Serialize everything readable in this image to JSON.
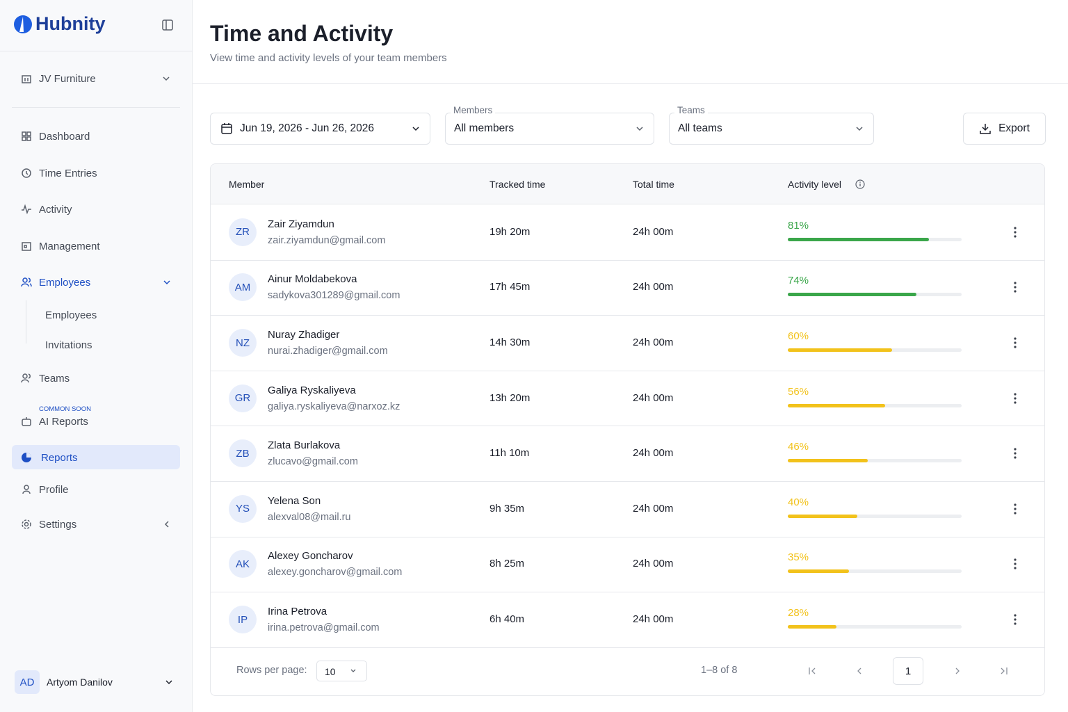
{
  "sidebar": {
    "brand": "Hubnity",
    "workspace": "JV Furniture",
    "nav": {
      "dashboard": "Dashboard",
      "time_entries": "Time Entries",
      "activity": "Activity",
      "management": "Management",
      "employees_group": "Employees",
      "employees_sub": [
        "Employees",
        "Invitations"
      ],
      "teams": "Teams",
      "ai_reports_badge": "COMMON SOON",
      "ai_reports": "AI Reports",
      "reports": "Reports",
      "profile": "Profile",
      "settings": "Settings"
    },
    "user": {
      "initials": "AD",
      "name": "Artyom Danilov"
    }
  },
  "header": {
    "title": "Time and Activity",
    "subtitle": "View time and activity levels of your team members"
  },
  "filters": {
    "date_range": "Jun 19, 2026 - Jun 26, 2026",
    "members_label": "Members",
    "members_value": "All members",
    "teams_label": "Teams",
    "teams_value": "All teams",
    "export": "Export"
  },
  "table": {
    "columns": [
      "Member",
      "Tracked time",
      "Total time",
      "Activity level"
    ],
    "rows": [
      {
        "initials": "ZR",
        "name": "Zair Ziyamdun",
        "email": "zair.ziyamdun@gmail.com",
        "tracked": "19h 20m",
        "total": "24h 00m",
        "activity": 81,
        "activity_label": "81%",
        "color": "#3aa64a"
      },
      {
        "initials": "AM",
        "name": "Ainur Moldabekova",
        "email": "sadykova301289@gmail.com",
        "tracked": "17h 45m",
        "total": "24h 00m",
        "activity": 74,
        "activity_label": "74%",
        "color": "#3aa64a"
      },
      {
        "initials": "NZ",
        "name": "Nuray Zhadiger",
        "email": "nurai.zhadiger@gmail.com",
        "tracked": "14h 30m",
        "total": "24h 00m",
        "activity": 60,
        "activity_label": "60%",
        "color": "#f2c21b"
      },
      {
        "initials": "GR",
        "name": "Galiya Ryskaliyeva",
        "email": "galiya.ryskaliyeva@narxoz.kz",
        "tracked": "13h 20m",
        "total": "24h 00m",
        "activity": 56,
        "activity_label": "56%",
        "color": "#f2c21b"
      },
      {
        "initials": "ZB",
        "name": "Zlata Burlakova",
        "email": "zlucavo@gmail.com",
        "tracked": "11h 10m",
        "total": "24h 00m",
        "activity": 46,
        "activity_label": "46%",
        "color": "#f2c21b"
      },
      {
        "initials": "YS",
        "name": "Yelena Son",
        "email": "alexval08@mail.ru",
        "tracked": "9h 35m",
        "total": "24h 00m",
        "activity": 40,
        "activity_label": "40%",
        "color": "#f2c21b"
      },
      {
        "initials": "AK",
        "name": "Alexey Goncharov",
        "email": "alexey.goncharov@gmail.com",
        "tracked": "8h 25m",
        "total": "24h 00m",
        "activity": 35,
        "activity_label": "35%",
        "color": "#f2c21b"
      },
      {
        "initials": "IP",
        "name": "Irina Petrova",
        "email": "irina.petrova@gmail.com",
        "tracked": "6h 40m",
        "total": "24h 00m",
        "activity": 28,
        "activity_label": "28%",
        "color": "#f2c21b"
      }
    ]
  },
  "pagination": {
    "rows_per_page_label": "Rows per page:",
    "rows_per_page": "10",
    "range": "1–8 of 8",
    "page": "1"
  }
}
